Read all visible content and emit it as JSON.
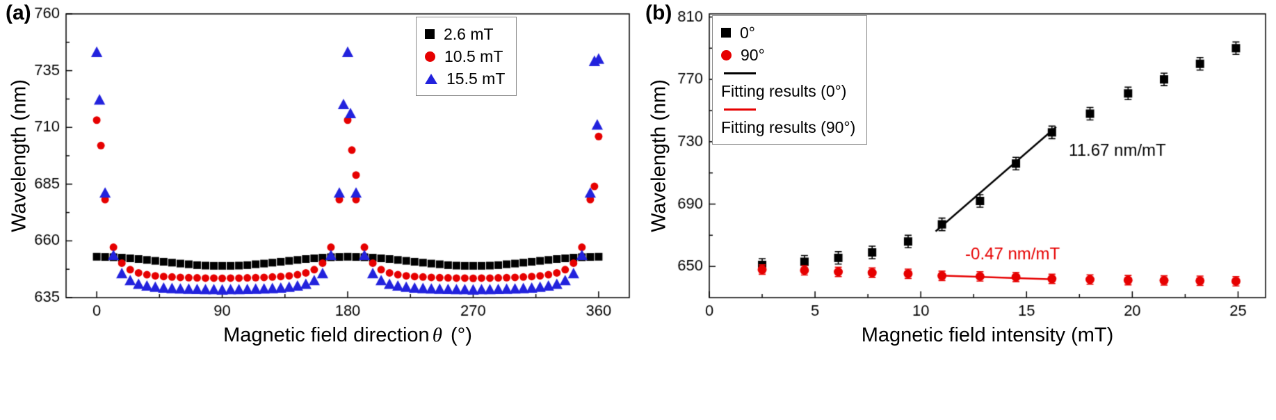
{
  "panels": {
    "a": {
      "tag": "(a)",
      "ylabel": "Wavelength (nm)",
      "xlabel": {
        "pre": "Magnetic field direction",
        "sym": "θ",
        "post": " (°)"
      }
    },
    "b": {
      "tag": "(b)",
      "ylabel": "Wavelength (nm)",
      "xlabel": {
        "pre": "Magnetic field intensity (mT)",
        "sym": "",
        "post": ""
      }
    }
  },
  "chart_data": [
    {
      "type": "scatter",
      "title": "",
      "xlabel": "Magnetic field direction θ (°)",
      "ylabel": "Wavelength (nm)",
      "xlim": [
        -22,
        382
      ],
      "ylim": [
        635,
        760
      ],
      "grid": false,
      "legend_position": "top-right",
      "xticks": {
        "major": [
          0,
          90,
          180,
          270,
          360
        ],
        "labels": [
          "0",
          "90",
          "180",
          "270",
          "360"
        ],
        "minor": [
          45,
          135,
          225,
          315
        ]
      },
      "yticks": {
        "major": [
          635,
          660,
          685,
          710,
          735,
          760
        ],
        "labels": [
          "635",
          "660",
          "685",
          "710",
          "735",
          "760"
        ],
        "minor": [
          647.5,
          672.5,
          697.5,
          722.5,
          747.5
        ]
      },
      "series": [
        {
          "name": "2.6 mT",
          "marker": "square",
          "color": "#000000",
          "size": 11,
          "x": [
            0,
            6,
            12,
            18,
            24,
            30,
            36,
            42,
            48,
            54,
            60,
            66,
            72,
            78,
            84,
            90,
            96,
            102,
            108,
            114,
            120,
            126,
            132,
            138,
            144,
            150,
            156,
            162,
            168,
            174,
            180,
            186,
            192,
            198,
            204,
            210,
            216,
            222,
            228,
            234,
            240,
            246,
            252,
            258,
            264,
            270,
            276,
            282,
            288,
            294,
            300,
            306,
            312,
            318,
            324,
            330,
            336,
            342,
            348,
            354,
            360
          ],
          "y": [
            653,
            652.9,
            652.8,
            652.6,
            652.3,
            652,
            651.6,
            651.2,
            650.8,
            650.4,
            650,
            649.7,
            649.3,
            649.1,
            649,
            649,
            649,
            649.1,
            649.3,
            649.7,
            650,
            650.4,
            650.8,
            651.2,
            651.6,
            652,
            652.3,
            652.6,
            652.8,
            652.9,
            653,
            652.9,
            652.8,
            652.6,
            652.3,
            652,
            651.6,
            651.2,
            650.8,
            650.4,
            650,
            649.7,
            649.3,
            649.1,
            649,
            649,
            649,
            649.1,
            649.3,
            649.7,
            650,
            650.4,
            650.8,
            651.2,
            651.6,
            652,
            652.3,
            652.6,
            652.8,
            652.9,
            653
          ]
        },
        {
          "name": "10.5 mT",
          "marker": "circle",
          "color": "#e60000",
          "size": 11,
          "x": [
            0,
            6,
            12,
            18,
            24,
            30,
            36,
            42,
            48,
            54,
            60,
            66,
            72,
            78,
            84,
            90,
            96,
            102,
            108,
            114,
            120,
            126,
            132,
            138,
            144,
            150,
            156,
            162,
            168,
            174,
            180,
            186,
            192,
            198,
            204,
            210,
            216,
            222,
            228,
            234,
            240,
            246,
            252,
            258,
            264,
            270,
            276,
            282,
            288,
            294,
            300,
            306,
            312,
            318,
            324,
            330,
            336,
            342,
            348,
            354,
            360,
            3,
            183,
            186,
            357
          ],
          "y": [
            713.2,
            678.2,
            657.2,
            650.2,
            647.3,
            645.9,
            645.1,
            644.6,
            644.3,
            644.1,
            643.9,
            643.8,
            643.7,
            643.6,
            643.6,
            643.5,
            643.6,
            643.6,
            643.7,
            643.8,
            643.9,
            644.1,
            644.3,
            644.6,
            645.1,
            645.9,
            647.3,
            650.2,
            657.2,
            678.2,
            713.2,
            678.2,
            657.2,
            650.2,
            647.3,
            645.9,
            645.1,
            644.6,
            644.3,
            644.1,
            643.9,
            643.8,
            643.7,
            643.6,
            643.6,
            643.5,
            643.6,
            643.6,
            643.7,
            643.8,
            643.9,
            644.1,
            644.3,
            644.6,
            645.1,
            645.9,
            647.3,
            650.2,
            657.2,
            678.2,
            706,
            702,
            700,
            689,
            684
          ]
        },
        {
          "name": "15.5 mT",
          "marker": "triangle",
          "color": "#2222dd",
          "size": 14,
          "x": [
            0,
            6,
            12,
            18,
            24,
            30,
            36,
            42,
            48,
            54,
            60,
            66,
            72,
            78,
            84,
            90,
            96,
            102,
            108,
            114,
            120,
            126,
            132,
            138,
            144,
            150,
            156,
            162,
            168,
            174,
            180,
            186,
            192,
            198,
            204,
            210,
            216,
            222,
            228,
            234,
            240,
            246,
            252,
            258,
            264,
            270,
            276,
            282,
            288,
            294,
            300,
            306,
            312,
            318,
            324,
            330,
            336,
            342,
            348,
            354,
            360,
            2,
            177,
            182,
            357,
            359
          ],
          "y": [
            743,
            681,
            653.5,
            645.5,
            642.4,
            640.8,
            640,
            639.5,
            639.1,
            638.9,
            638.7,
            638.6,
            638.5,
            638.4,
            638.4,
            638.3,
            638.4,
            638.4,
            638.5,
            638.6,
            638.7,
            638.9,
            639.1,
            639.5,
            640,
            640.8,
            642.4,
            645.5,
            653.5,
            681,
            743,
            681,
            653.5,
            645.5,
            642.4,
            640.8,
            640,
            639.5,
            639.1,
            638.9,
            638.7,
            638.6,
            638.5,
            638.4,
            638.4,
            638.3,
            638.4,
            638.4,
            638.5,
            638.6,
            638.7,
            638.9,
            639.1,
            639.5,
            640,
            640.8,
            642.4,
            645.5,
            653.5,
            681,
            740,
            722,
            720,
            716,
            739,
            711
          ]
        }
      ]
    },
    {
      "type": "scatter",
      "title": "",
      "xlabel": "Magnetic field intensity (mT)",
      "ylabel": "Wavelength (nm)",
      "xlim": [
        0,
        26.3
      ],
      "ylim": [
        630,
        812
      ],
      "grid": false,
      "legend_position": "top-left",
      "xticks": {
        "major": [
          0,
          5,
          10,
          15,
          20,
          25
        ],
        "labels": [
          "0",
          "5",
          "10",
          "15",
          "20",
          "25"
        ],
        "minor": [
          2.5,
          7.5,
          12.5,
          17.5,
          22.5
        ]
      },
      "yticks": {
        "major": [
          650,
          690,
          730,
          770,
          810
        ],
        "labels": [
          "650",
          "690",
          "730",
          "770",
          "810"
        ],
        "minor": [
          670,
          710,
          750,
          790
        ]
      },
      "series": [
        {
          "name": "0°",
          "marker": "square",
          "color": "#000000",
          "size": 12,
          "yerr": 4,
          "x": [
            2.5,
            4.5,
            6.1,
            7.7,
            9.4,
            11,
            12.8,
            14.5,
            16.2,
            18,
            19.8,
            21.5,
            23.2,
            24.9
          ],
          "y": [
            651,
            653,
            655.5,
            659,
            666,
            677,
            692,
            716,
            736,
            748,
            761,
            770,
            780,
            790
          ]
        },
        {
          "name": "90°",
          "marker": "circle",
          "color": "#e60000",
          "size": 13,
          "yerr": 3,
          "x": [
            2.5,
            4.5,
            6.1,
            7.7,
            9.4,
            11,
            12.8,
            14.5,
            16.2,
            18,
            19.8,
            21.5,
            23.2,
            24.9
          ],
          "y": [
            648,
            647.5,
            646.5,
            646,
            645.3,
            644,
            643.6,
            643.2,
            642,
            641.6,
            641.2,
            641,
            640.8,
            640.5
          ]
        }
      ],
      "fit_lines": [
        {
          "name": "Fitting results (0°)",
          "color": "#000000",
          "width": 2.5,
          "points": [
            [
              10.7,
              672.5
            ],
            [
              16.4,
              739.5
            ]
          ],
          "slope_label": "11.67 nm/mT"
        },
        {
          "name": "Fitting results (90°)",
          "color": "#e60000",
          "width": 2.5,
          "points": [
            [
              10.9,
              644.2
            ],
            [
              16.3,
              641.7
            ]
          ],
          "slope_label": "-0.47 nm/mT"
        }
      ],
      "annotations": [
        {
          "text": "11.67 nm/mT",
          "color": "#000000",
          "x": 17.0,
          "y": 724
        },
        {
          "text": "-0.47 nm/mT",
          "color": "#e60000",
          "x": 12.1,
          "y": 657.5
        }
      ]
    }
  ]
}
